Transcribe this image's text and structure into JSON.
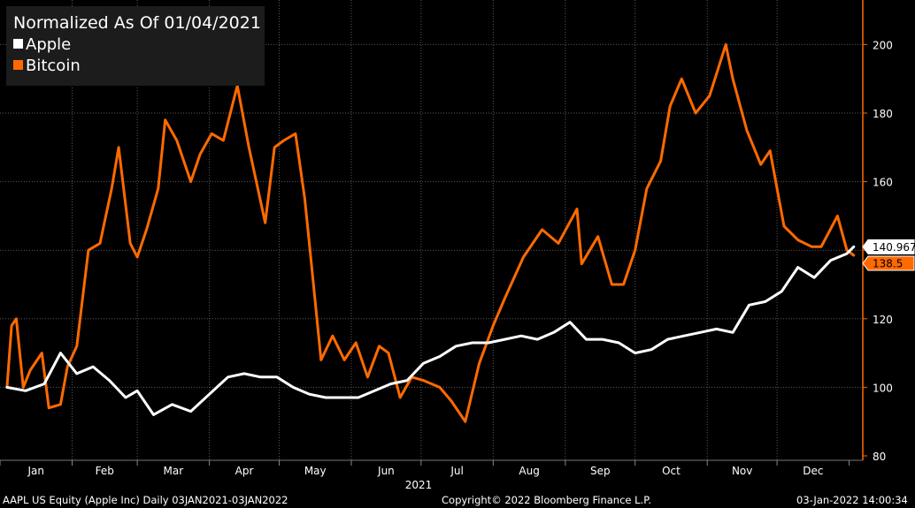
{
  "chart_data": {
    "type": "line",
    "title": "Normalized As Of 01/04/2021",
    "xlabel": "2021",
    "x_months": [
      "Jan",
      "Feb",
      "Mar",
      "Apr",
      "May",
      "Jun",
      "Jul",
      "Aug",
      "Sep",
      "Oct",
      "Nov",
      "Dec"
    ],
    "ylim": [
      80,
      210
    ],
    "yticks": [
      80,
      100,
      120,
      140,
      160,
      180,
      200
    ],
    "grid": true,
    "legend_position": "top-left",
    "axis_color": "#ff6a00",
    "series": [
      {
        "name": "Apple",
        "color": "#ffffff",
        "last_value": "140.967",
        "points": [
          [
            "2021-01-04",
            100
          ],
          [
            "2021-01-12",
            99
          ],
          [
            "2021-01-20",
            101
          ],
          [
            "2021-01-27",
            110
          ],
          [
            "2021-02-03",
            104
          ],
          [
            "2021-02-10",
            106
          ],
          [
            "2021-02-17",
            102
          ],
          [
            "2021-02-24",
            97
          ],
          [
            "2021-03-01",
            99
          ],
          [
            "2021-03-08",
            92
          ],
          [
            "2021-03-16",
            95
          ],
          [
            "2021-03-24",
            93
          ],
          [
            "2021-04-01",
            98
          ],
          [
            "2021-04-09",
            103
          ],
          [
            "2021-04-16",
            104
          ],
          [
            "2021-04-23",
            103
          ],
          [
            "2021-04-30",
            103
          ],
          [
            "2021-05-07",
            100
          ],
          [
            "2021-05-14",
            98
          ],
          [
            "2021-05-21",
            97
          ],
          [
            "2021-05-28",
            97
          ],
          [
            "2021-06-04",
            97
          ],
          [
            "2021-06-11",
            99
          ],
          [
            "2021-06-18",
            101
          ],
          [
            "2021-06-25",
            102
          ],
          [
            "2021-07-02",
            107
          ],
          [
            "2021-07-09",
            109
          ],
          [
            "2021-07-16",
            112
          ],
          [
            "2021-07-23",
            113
          ],
          [
            "2021-07-30",
            113
          ],
          [
            "2021-08-06",
            114
          ],
          [
            "2021-08-13",
            115
          ],
          [
            "2021-08-20",
            114
          ],
          [
            "2021-08-27",
            116
          ],
          [
            "2021-09-03",
            119
          ],
          [
            "2021-09-10",
            114
          ],
          [
            "2021-09-17",
            114
          ],
          [
            "2021-09-24",
            113
          ],
          [
            "2021-10-01",
            110
          ],
          [
            "2021-10-08",
            111
          ],
          [
            "2021-10-15",
            114
          ],
          [
            "2021-10-22",
            115
          ],
          [
            "2021-10-29",
            116
          ],
          [
            "2021-11-05",
            117
          ],
          [
            "2021-11-12",
            116
          ],
          [
            "2021-11-19",
            124
          ],
          [
            "2021-11-26",
            125
          ],
          [
            "2021-12-03",
            128
          ],
          [
            "2021-12-10",
            135
          ],
          [
            "2021-12-17",
            132
          ],
          [
            "2021-12-24",
            137
          ],
          [
            "2021-12-31",
            139
          ],
          [
            "2022-01-03",
            141
          ]
        ]
      },
      {
        "name": "Bitcoin",
        "color": "#ff6a00",
        "last_value": "138.5",
        "points": [
          [
            "2021-01-04",
            100
          ],
          [
            "2021-01-06",
            118
          ],
          [
            "2021-01-08",
            120
          ],
          [
            "2021-01-11",
            100
          ],
          [
            "2021-01-14",
            105
          ],
          [
            "2021-01-19",
            110
          ],
          [
            "2021-01-22",
            94
          ],
          [
            "2021-01-27",
            95
          ],
          [
            "2021-01-30",
            106
          ],
          [
            "2021-02-03",
            112
          ],
          [
            "2021-02-08",
            140
          ],
          [
            "2021-02-13",
            142
          ],
          [
            "2021-02-18",
            158
          ],
          [
            "2021-02-21",
            170
          ],
          [
            "2021-02-26",
            142
          ],
          [
            "2021-03-01",
            138
          ],
          [
            "2021-03-05",
            146
          ],
          [
            "2021-03-10",
            158
          ],
          [
            "2021-03-13",
            178
          ],
          [
            "2021-03-18",
            172
          ],
          [
            "2021-03-24",
            160
          ],
          [
            "2021-03-28",
            168
          ],
          [
            "2021-04-02",
            174
          ],
          [
            "2021-04-07",
            172
          ],
          [
            "2021-04-13",
            188
          ],
          [
            "2021-04-18",
            170
          ],
          [
            "2021-04-25",
            148
          ],
          [
            "2021-04-29",
            170
          ],
          [
            "2021-05-03",
            172
          ],
          [
            "2021-05-08",
            174
          ],
          [
            "2021-05-12",
            155
          ],
          [
            "2021-05-15",
            135
          ],
          [
            "2021-05-19",
            108
          ],
          [
            "2021-05-24",
            115
          ],
          [
            "2021-05-29",
            108
          ],
          [
            "2021-06-03",
            113
          ],
          [
            "2021-06-08",
            103
          ],
          [
            "2021-06-13",
            112
          ],
          [
            "2021-06-17",
            110
          ],
          [
            "2021-06-22",
            97
          ],
          [
            "2021-06-27",
            103
          ],
          [
            "2021-07-02",
            102
          ],
          [
            "2021-07-09",
            100
          ],
          [
            "2021-07-14",
            96
          ],
          [
            "2021-07-20",
            90
          ],
          [
            "2021-07-26",
            107
          ],
          [
            "2021-08-01",
            118
          ],
          [
            "2021-08-06",
            126
          ],
          [
            "2021-08-14",
            138
          ],
          [
            "2021-08-22",
            146
          ],
          [
            "2021-08-29",
            142
          ],
          [
            "2021-09-06",
            152
          ],
          [
            "2021-09-08",
            136
          ],
          [
            "2021-09-15",
            144
          ],
          [
            "2021-09-21",
            130
          ],
          [
            "2021-09-26",
            130
          ],
          [
            "2021-10-01",
            140
          ],
          [
            "2021-10-06",
            158
          ],
          [
            "2021-10-12",
            166
          ],
          [
            "2021-10-16",
            182
          ],
          [
            "2021-10-21",
            190
          ],
          [
            "2021-10-27",
            180
          ],
          [
            "2021-11-02",
            185
          ],
          [
            "2021-11-09",
            200
          ],
          [
            "2021-11-12",
            190
          ],
          [
            "2021-11-18",
            175
          ],
          [
            "2021-11-24",
            165
          ],
          [
            "2021-11-28",
            169
          ],
          [
            "2021-12-04",
            147
          ],
          [
            "2021-12-10",
            143
          ],
          [
            "2021-12-16",
            141
          ],
          [
            "2021-12-20",
            141
          ],
          [
            "2021-12-27",
            150
          ],
          [
            "2021-12-31",
            140
          ],
          [
            "2022-01-03",
            138.5
          ]
        ]
      }
    ]
  },
  "footer": {
    "left": "AAPL US Equity (Apple Inc)  Daily 03JAN2021-03JAN2022",
    "center": "Copyright© 2022 Bloomberg Finance L.P.",
    "right": "03-Jan-2022 14:00:34"
  }
}
